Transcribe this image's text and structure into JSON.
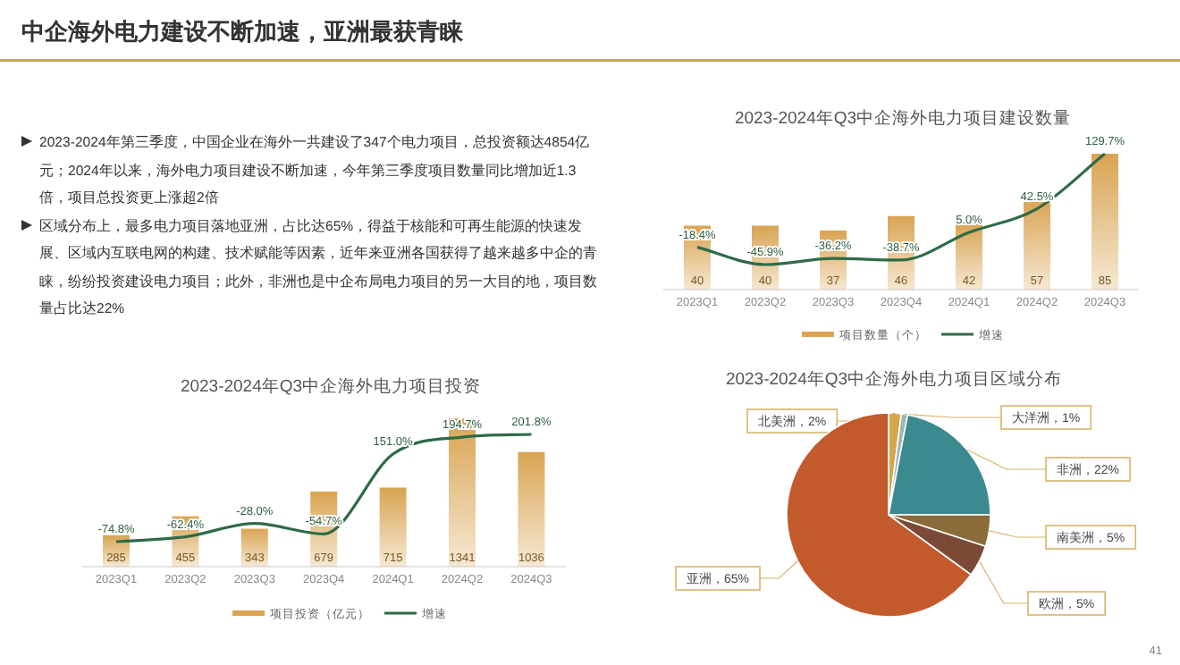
{
  "chart_data": [
    {
      "type": "other",
      "title": "中企海外电力建设不断加速，亚洲最获青睐",
      "annotations": [
        "2023-2024年第三季度，中国企业在海外一共建设了347个电力项目，总投资额达4854亿元；2024年以来，海外电力项目建设不断加速，今年第三季度项目数量同比增加近1.3倍，项目总投资更上涨超2倍",
        "区域分布上，最多电力项目落地亚洲，占比达65%，得益于核能和可再生能源的快速发展、区域内互联电网的构建、技术赋能等因素，近年来亚洲各国获得了越来越多中企的青睐，纷纷投资建设电力项目；此外，非洲也是中企布局电力项目的另一大目的地，项目数量占比达22%",
        "41"
      ]
    },
    {
      "type": "bar",
      "title": "2023-2024年Q3中企海外电力项目建设数量",
      "categories": [
        "2023Q1",
        "2023Q2",
        "2023Q3",
        "2023Q4",
        "2024Q1",
        "2024Q2",
        "2024Q3"
      ],
      "legend": "bottom",
      "series": [
        {
          "name": "项目数量（个）",
          "type": "bar",
          "color": "#d9a452",
          "values": [
            40,
            40,
            37,
            46,
            42,
            57,
            85
          ],
          "value_labels": [
            "40",
            "40",
            "37",
            "46",
            "42",
            "57",
            "85"
          ]
        },
        {
          "name": "增速",
          "type": "line",
          "axis": "y2",
          "color": "#2e6b47",
          "values": [
            -18.4,
            -45.9,
            -36.2,
            -38.7,
            5.0,
            42.5,
            129.7
          ],
          "value_labels": [
            "-18.4%",
            "-45.9%",
            "-36.2%",
            "-38.7%",
            "5.0%",
            "42.5%",
            "129.7%"
          ]
        }
      ]
    },
    {
      "type": "bar",
      "title": "2023-2024年Q3中企海外电力项目投资",
      "categories": [
        "2023Q1",
        "2023Q2",
        "2023Q3",
        "2023Q4",
        "2024Q1",
        "2024Q2",
        "2024Q3"
      ],
      "legend": "bottom",
      "series": [
        {
          "name": "项目投资（亿元）",
          "type": "bar",
          "color": "#d9a452",
          "values": [
            285,
            455,
            343,
            679,
            715,
            1341,
            1036
          ],
          "value_labels": [
            "285",
            "455",
            "343",
            "679",
            "715",
            "1341",
            "1036"
          ]
        },
        {
          "name": "增速",
          "type": "line",
          "axis": "y2",
          "color": "#2e6b47",
          "values": [
            -74.8,
            -62.4,
            -28.0,
            -54.7,
            151.0,
            194.7,
            201.8
          ],
          "value_labels": [
            "-74.8%",
            "-62.4%",
            "-28.0%",
            "-54.7%",
            "151.0%",
            "194.7%",
            "201.8%"
          ]
        }
      ]
    },
    {
      "type": "pie",
      "title": "2023-2024年Q3中企海外电力项目区域分布",
      "categories": [
        "北美洲",
        "大洋洲",
        "非洲",
        "南美洲",
        "欧洲",
        "亚洲"
      ],
      "values": [
        2,
        1,
        22,
        5,
        5,
        65
      ],
      "value_labels": [
        "2%",
        "1%",
        "22%",
        "5%",
        "5%",
        "65%"
      ],
      "colors": [
        "#d4a84a",
        "#9fb4bb",
        "#3b8a90",
        "#8a6b3a",
        "#7a4a36",
        "#c25a2c"
      ]
    }
  ]
}
